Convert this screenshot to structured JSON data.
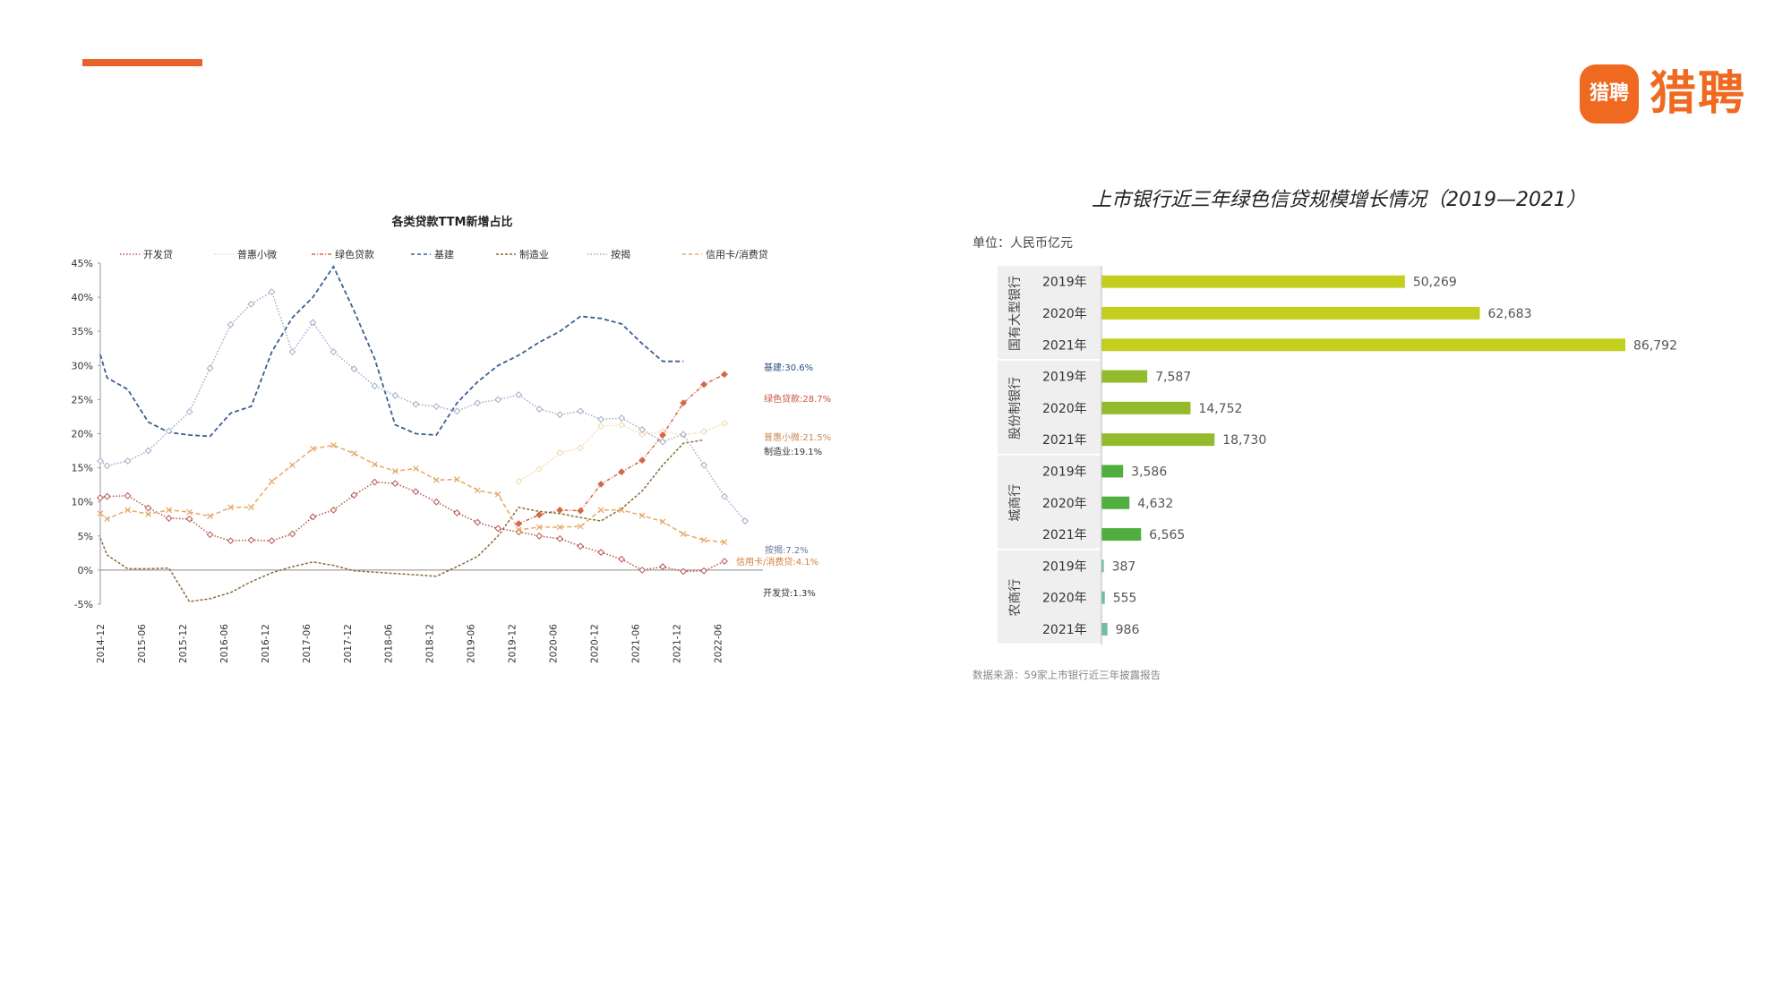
{
  "logo": {
    "badge_text": "猎聘",
    "text": "猎聘"
  },
  "colors": {
    "accent": "#e8632a",
    "brand": "#ef6a20"
  },
  "chart_data": [
    {
      "type": "line",
      "title": "各类贷款TTM新增占比",
      "xlabel": "",
      "ylabel": "",
      "ylim": [
        -5,
        45
      ],
      "yticks": [
        "-5%",
        "0%",
        "5%",
        "10%",
        "15%",
        "20%",
        "25%",
        "30%",
        "35%",
        "40%",
        "45%"
      ],
      "categories": [
        "2014-12",
        "2015-06",
        "2015-12",
        "2016-06",
        "2016-12",
        "2017-06",
        "2017-12",
        "2018-06",
        "2018-12",
        "2019-06",
        "2019-12",
        "2020-06",
        "2020-12",
        "2021-06",
        "2021-12",
        "2022-06"
      ],
      "x": [
        2014.917,
        2015.0,
        2015.25,
        2015.5,
        2015.75,
        2016.0,
        2016.25,
        2016.5,
        2016.75,
        2017.0,
        2017.25,
        2017.5,
        2017.75,
        2018.0,
        2018.25,
        2018.5,
        2018.75,
        2019.0,
        2019.25,
        2019.5,
        2019.75,
        2020.0,
        2020.25,
        2020.5,
        2020.75,
        2021.0,
        2021.25,
        2021.5,
        2021.75,
        2022.0,
        2022.25,
        2022.5,
        2022.75
      ],
      "legend_position": "top",
      "series": [
        {
          "name": "开发贷",
          "style": "dotted-diamond",
          "color": "#b85450",
          "values": [
            10.6,
            10.8,
            10.9,
            9.1,
            7.6,
            7.5,
            5.2,
            4.3,
            4.4,
            4.3,
            5.3,
            7.8,
            8.8,
            11.0,
            12.9,
            12.7,
            11.5,
            10.0,
            8.4,
            7.0,
            6.1,
            5.6,
            5.0,
            4.6,
            3.5,
            2.6,
            1.6,
            0.0,
            0.5,
            -0.2,
            -0.1,
            1.3,
            null
          ],
          "end_label": "开发贷:1.3%"
        },
        {
          "name": "普惠小微",
          "style": "dotted-diamond",
          "color": "#f0d9a8",
          "values": [
            null,
            null,
            null,
            null,
            null,
            null,
            null,
            null,
            null,
            null,
            null,
            null,
            null,
            null,
            null,
            null,
            null,
            null,
            null,
            null,
            null,
            13.0,
            14.8,
            17.2,
            17.9,
            21.1,
            21.3,
            19.9,
            20.3,
            19.8,
            20.3,
            21.5,
            null
          ],
          "end_label": "普惠小微:21.5%"
        },
        {
          "name": "绿色贷款",
          "style": "dashdot-diamond",
          "color": "#d2694a",
          "values": [
            null,
            null,
            null,
            null,
            null,
            null,
            null,
            null,
            null,
            null,
            null,
            null,
            null,
            null,
            null,
            null,
            null,
            null,
            null,
            null,
            null,
            6.8,
            8.1,
            8.8,
            8.7,
            12.6,
            14.4,
            16.1,
            19.8,
            24.5,
            27.2,
            28.7,
            null
          ],
          "end_label": "绿色贷款:28.7%"
        },
        {
          "name": "基建",
          "style": "dashed",
          "color": "#3b5f92",
          "values": [
            31.6,
            28.2,
            26.5,
            21.7,
            20.2,
            19.8,
            19.6,
            23.0,
            24.0,
            32.0,
            37.0,
            40.0,
            44.5,
            38.0,
            31.0,
            21.3,
            20.0,
            19.8,
            24.5,
            27.6,
            30.0,
            31.5,
            33.4,
            35.0,
            37.2,
            36.9,
            36.1,
            33.2,
            30.6,
            30.6,
            null,
            null,
            null
          ],
          "end_label": "基建:30.6%"
        },
        {
          "name": "制造业",
          "style": "dashed-short",
          "color": "#8a6a36",
          "values": [
            4.7,
            2.2,
            0.2,
            0.2,
            0.3,
            -4.6,
            -4.2,
            -3.3,
            -1.7,
            -0.4,
            0.5,
            1.2,
            0.7,
            -0.1,
            -0.3,
            -0.5,
            -0.7,
            -0.9,
            0.5,
            2.0,
            5.0,
            9.2,
            8.6,
            8.3,
            7.7,
            7.2,
            9.0,
            11.6,
            15.4,
            18.6,
            19.1,
            null,
            null
          ],
          "end_label": "制造业:19.1%"
        },
        {
          "name": "按揭",
          "style": "dotted-diamond",
          "color": "#a3acc6",
          "values": [
            16.0,
            15.3,
            16.0,
            17.5,
            20.4,
            23.2,
            29.6,
            36.0,
            39.0,
            40.8,
            32.0,
            36.3,
            32.0,
            29.5,
            27.0,
            25.6,
            24.3,
            24.0,
            23.3,
            24.5,
            25.0,
            25.7,
            23.6,
            22.8,
            23.3,
            22.1,
            22.3,
            20.6,
            18.8,
            19.9,
            15.4,
            10.8,
            7.2
          ],
          "end_label": "按揭:7.2%"
        },
        {
          "name": "信用卡/消费贷",
          "style": "dashed-x",
          "color": "#e6a865",
          "values": [
            8.3,
            7.5,
            8.8,
            8.2,
            8.8,
            8.5,
            7.9,
            9.2,
            9.2,
            13.0,
            15.4,
            17.8,
            18.3,
            17.1,
            15.5,
            14.5,
            14.9,
            13.2,
            13.3,
            11.7,
            11.1,
            5.9,
            6.3,
            6.3,
            6.4,
            8.8,
            8.8,
            8.0,
            7.1,
            5.3,
            4.4,
            4.1,
            null
          ],
          "end_label": "信用卡/消费贷:4.1%"
        }
      ]
    },
    {
      "type": "bar",
      "orientation": "horizontal",
      "title": "上市银行近三年绿色信贷规模增长情况（2019—2021）",
      "unit": "单位：人民币亿元",
      "source": "数据来源：59家上市银行近三年披露报告",
      "xlim": [
        0,
        100000
      ],
      "groups": [
        {
          "name": "国有大型银行",
          "color": "#c3cf1e",
          "bars": [
            {
              "year": "2019年",
              "value": 50269,
              "label": "50,269"
            },
            {
              "year": "2020年",
              "value": 62683,
              "label": "62,683"
            },
            {
              "year": "2021年",
              "value": 86792,
              "label": "86,792"
            }
          ]
        },
        {
          "name": "股份制银行",
          "color": "#93bb2c",
          "bars": [
            {
              "year": "2019年",
              "value": 7587,
              "label": "7,587"
            },
            {
              "year": "2020年",
              "value": 14752,
              "label": "14,752"
            },
            {
              "year": "2021年",
              "value": 18730,
              "label": "18,730"
            }
          ]
        },
        {
          "name": "城商行",
          "color": "#4fae3e",
          "bars": [
            {
              "year": "2019年",
              "value": 3586,
              "label": "3,586"
            },
            {
              "year": "2020年",
              "value": 4632,
              "label": "4,632"
            },
            {
              "year": "2021年",
              "value": 6565,
              "label": "6,565"
            }
          ]
        },
        {
          "name": "农商行",
          "color": "#6fbe9c",
          "bars": [
            {
              "year": "2019年",
              "value": 387,
              "label": "387"
            },
            {
              "year": "2020年",
              "value": 555,
              "label": "555"
            },
            {
              "year": "2021年",
              "value": 986,
              "label": "986"
            }
          ]
        }
      ]
    }
  ]
}
